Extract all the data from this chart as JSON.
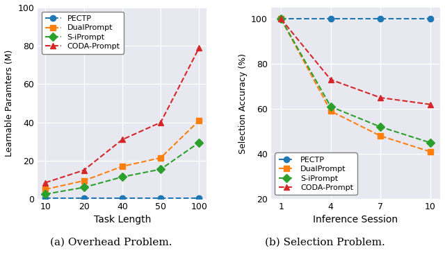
{
  "left": {
    "x": [
      10,
      20,
      40,
      50,
      100
    ],
    "x_positions": [
      0,
      1,
      2,
      3,
      4
    ],
    "pectp": [
      0.3,
      0.3,
      0.3,
      0.3,
      0.3
    ],
    "dualprompt": [
      5.0,
      9.5,
      17.0,
      21.5,
      41.0
    ],
    "siprompt": [
      2.5,
      6.0,
      11.5,
      15.5,
      29.5
    ],
    "coda": [
      8.5,
      15.0,
      31.0,
      40.0,
      79.0
    ],
    "xlabel": "Task Length",
    "ylabel": "Learnable Paramters (M)",
    "ylim": [
      0,
      100
    ],
    "yticks": [
      0,
      20,
      40,
      60,
      80,
      100
    ],
    "xtick_labels": [
      "10",
      "20",
      "40",
      "50",
      "100"
    ],
    "caption": "(a) Overhead Problem."
  },
  "right": {
    "x": [
      1,
      4,
      7,
      10
    ],
    "x_positions": [
      0,
      1,
      2,
      3
    ],
    "pectp": [
      100,
      100,
      100,
      100
    ],
    "dualprompt": [
      100,
      59,
      48,
      41
    ],
    "siprompt": [
      100,
      61,
      52,
      45
    ],
    "coda": [
      100,
      73,
      65,
      62
    ],
    "xlabel": "Inference Session",
    "ylabel": "Selection Accuracy (%)",
    "ylim": [
      20,
      105
    ],
    "yticks": [
      20,
      40,
      60,
      80,
      100
    ],
    "xtick_labels": [
      "1",
      "4",
      "7",
      "10"
    ],
    "caption": "(b) Selection Problem."
  },
  "colors": {
    "pectp": "#1f77b4",
    "dualprompt": "#ff7f0e",
    "siprompt": "#2ca02c",
    "coda": "#d62728"
  },
  "labels": {
    "pectp": "PECTP",
    "dualprompt": "DualPrompt",
    "siprompt": "S-iPrompt",
    "coda": "CODA-Prompt"
  },
  "markers": {
    "pectp": "o",
    "dualprompt": "s",
    "siprompt": "D",
    "coda": "^"
  },
  "bg_color": "#e8e8f0"
}
